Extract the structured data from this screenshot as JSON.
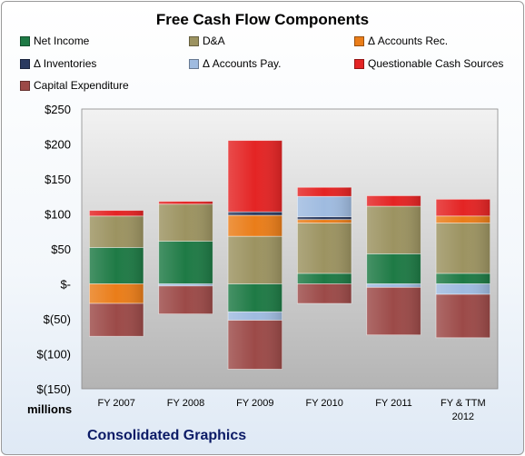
{
  "chart_data": {
    "type": "bar",
    "stacked": true,
    "title": "Free Cash Flow Components",
    "units_label": "millions",
    "company": "Consolidated Graphics",
    "categories": [
      "FY 2007",
      "FY 2008",
      "FY 2009",
      "FY 2010",
      "FY 2011",
      "FY & TTM 2012"
    ],
    "ylim": [
      -150,
      250
    ],
    "yticks": [
      {
        "v": 250,
        "label": "$250"
      },
      {
        "v": 200,
        "label": "$200"
      },
      {
        "v": 150,
        "label": "$150"
      },
      {
        "v": 100,
        "label": "$100"
      },
      {
        "v": 50,
        "label": "$50"
      },
      {
        "v": 0,
        "label": "$-"
      },
      {
        "v": -50,
        "label": "$(50)"
      },
      {
        "v": -100,
        "label": "$(100)"
      },
      {
        "v": -150,
        "label": "$(150)"
      }
    ],
    "grid": false,
    "legend_placement": "top",
    "series": [
      {
        "name": "Net Income",
        "color": "#1e7a45",
        "values": [
          52,
          61,
          -40,
          15,
          43,
          15
        ]
      },
      {
        "name": "D&A",
        "color": "#9c9361",
        "values": [
          45,
          53,
          68,
          72,
          68,
          72
        ]
      },
      {
        "name": "Δ Accounts Rec.",
        "color": "#ea7d19",
        "values": [
          -28,
          0,
          30,
          5,
          0,
          10
        ]
      },
      {
        "name": "Δ Inventories",
        "color": "#2a3a60",
        "values": [
          0,
          0,
          5,
          4,
          0,
          0
        ]
      },
      {
        "name": "Δ Accounts Pay.",
        "color": "#9fbbe0",
        "values": [
          0,
          -3,
          -12,
          29,
          -5,
          -15
        ]
      },
      {
        "name": "Questionable Cash Sources",
        "color": "#e42424",
        "values": [
          8,
          4,
          102,
          13,
          15,
          24
        ]
      },
      {
        "name": "Capital Expenditure",
        "color": "#9c4a48",
        "values": [
          -47,
          -40,
          -70,
          -28,
          -68,
          -62
        ]
      }
    ]
  }
}
